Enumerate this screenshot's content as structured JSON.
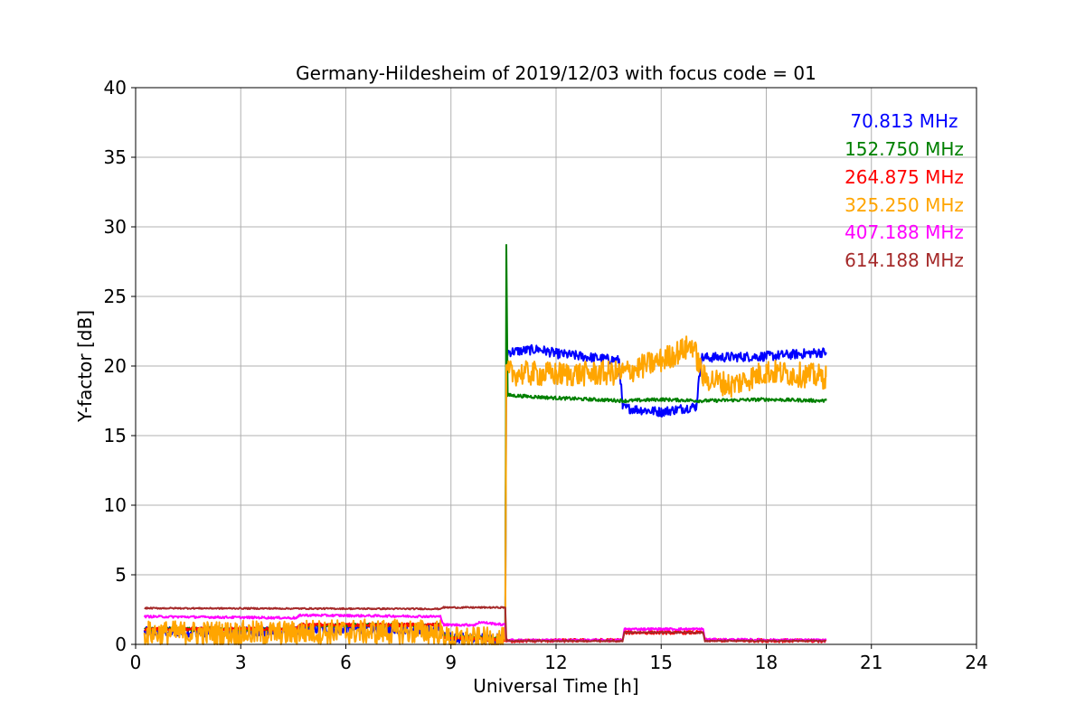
{
  "chart_data": {
    "type": "line",
    "title": "Germany-Hildesheim of 2019/12/03 with focus code = 01",
    "xlabel": "Universal Time [h]",
    "ylabel": "Y-factor [dB]",
    "xlim": [
      0,
      24
    ],
    "ylim": [
      0,
      40
    ],
    "xticks": [
      0,
      3,
      6,
      9,
      12,
      15,
      18,
      21,
      24
    ],
    "yticks": [
      0,
      5,
      10,
      15,
      20,
      25,
      30,
      35,
      40
    ],
    "grid": true,
    "legend_position": "top-right",
    "series": [
      {
        "name": "70.813 MHz",
        "color": "#0000ff",
        "noise": 0.35,
        "points": [
          [
            0.25,
            0.9
          ],
          [
            4.6,
            0.9
          ],
          [
            4.7,
            1.1
          ],
          [
            8.7,
            1.1
          ],
          [
            8.8,
            0.5
          ],
          [
            10.55,
            0.4
          ],
          [
            10.58,
            21.0
          ],
          [
            11.5,
            21.2
          ],
          [
            12.0,
            20.9
          ],
          [
            13.8,
            20.4
          ],
          [
            13.9,
            17.0
          ],
          [
            15.0,
            16.7
          ],
          [
            16.0,
            17.1
          ],
          [
            16.15,
            20.6
          ],
          [
            18.0,
            20.7
          ],
          [
            19.7,
            21.0
          ]
        ]
      },
      {
        "name": "152.750 MHz",
        "color": "#008000",
        "noise": 0.12,
        "points": [
          [
            0.25,
            1.1
          ],
          [
            4.6,
            1.1
          ],
          [
            4.7,
            1.35
          ],
          [
            8.7,
            1.4
          ],
          [
            8.8,
            0.6
          ],
          [
            10.55,
            0.4
          ],
          [
            10.58,
            28.7
          ],
          [
            10.62,
            17.9
          ],
          [
            12.0,
            17.7
          ],
          [
            14.0,
            17.5
          ],
          [
            15.0,
            17.6
          ],
          [
            16.2,
            17.5
          ],
          [
            18.0,
            17.6
          ],
          [
            19.7,
            17.5
          ]
        ]
      },
      {
        "name": "264.875 MHz",
        "color": "#ff0000",
        "noise": 0.12,
        "points": [
          [
            0.25,
            1.1
          ],
          [
            4.6,
            1.1
          ],
          [
            4.7,
            1.4
          ],
          [
            8.7,
            1.4
          ],
          [
            8.8,
            0.5
          ],
          [
            10.55,
            0.3
          ],
          [
            10.58,
            0.25
          ],
          [
            13.9,
            0.3
          ],
          [
            13.95,
            0.85
          ],
          [
            16.2,
            0.85
          ],
          [
            16.25,
            0.3
          ],
          [
            19.7,
            0.25
          ]
        ]
      },
      {
        "name": "325.250 MHz",
        "color": "#ffa500",
        "noise": 0.9,
        "points": [
          [
            0.25,
            0.8
          ],
          [
            4.6,
            0.8
          ],
          [
            4.7,
            0.9
          ],
          [
            8.7,
            0.9
          ],
          [
            8.8,
            0.4
          ],
          [
            10.55,
            0.3
          ],
          [
            10.58,
            19.5
          ],
          [
            12.0,
            19.4
          ],
          [
            13.9,
            19.5
          ],
          [
            15.0,
            20.4
          ],
          [
            15.9,
            21.5
          ],
          [
            16.2,
            19.2
          ],
          [
            17.0,
            18.6
          ],
          [
            18.0,
            19.6
          ],
          [
            19.7,
            19.2
          ]
        ]
      },
      {
        "name": "407.188 MHz",
        "color": "#ff00ff",
        "noise": 0.08,
        "points": [
          [
            0.25,
            2.0
          ],
          [
            4.6,
            1.9
          ],
          [
            4.7,
            2.1
          ],
          [
            8.7,
            2.0
          ],
          [
            8.8,
            1.4
          ],
          [
            9.7,
            1.4
          ],
          [
            9.8,
            1.6
          ],
          [
            10.55,
            1.4
          ],
          [
            10.58,
            0.3
          ],
          [
            13.9,
            0.3
          ],
          [
            13.95,
            1.1
          ],
          [
            16.2,
            1.1
          ],
          [
            16.25,
            0.35
          ],
          [
            19.7,
            0.3
          ]
        ]
      },
      {
        "name": "614.188 MHz",
        "color": "#a52a2a",
        "noise": 0.05,
        "points": [
          [
            0.25,
            2.6
          ],
          [
            8.7,
            2.55
          ],
          [
            8.75,
            2.65
          ],
          [
            10.55,
            2.65
          ],
          [
            10.58,
            0.25
          ],
          [
            13.9,
            0.25
          ],
          [
            13.95,
            0.85
          ],
          [
            16.2,
            0.85
          ],
          [
            16.25,
            0.25
          ],
          [
            19.7,
            0.25
          ]
        ]
      }
    ]
  }
}
